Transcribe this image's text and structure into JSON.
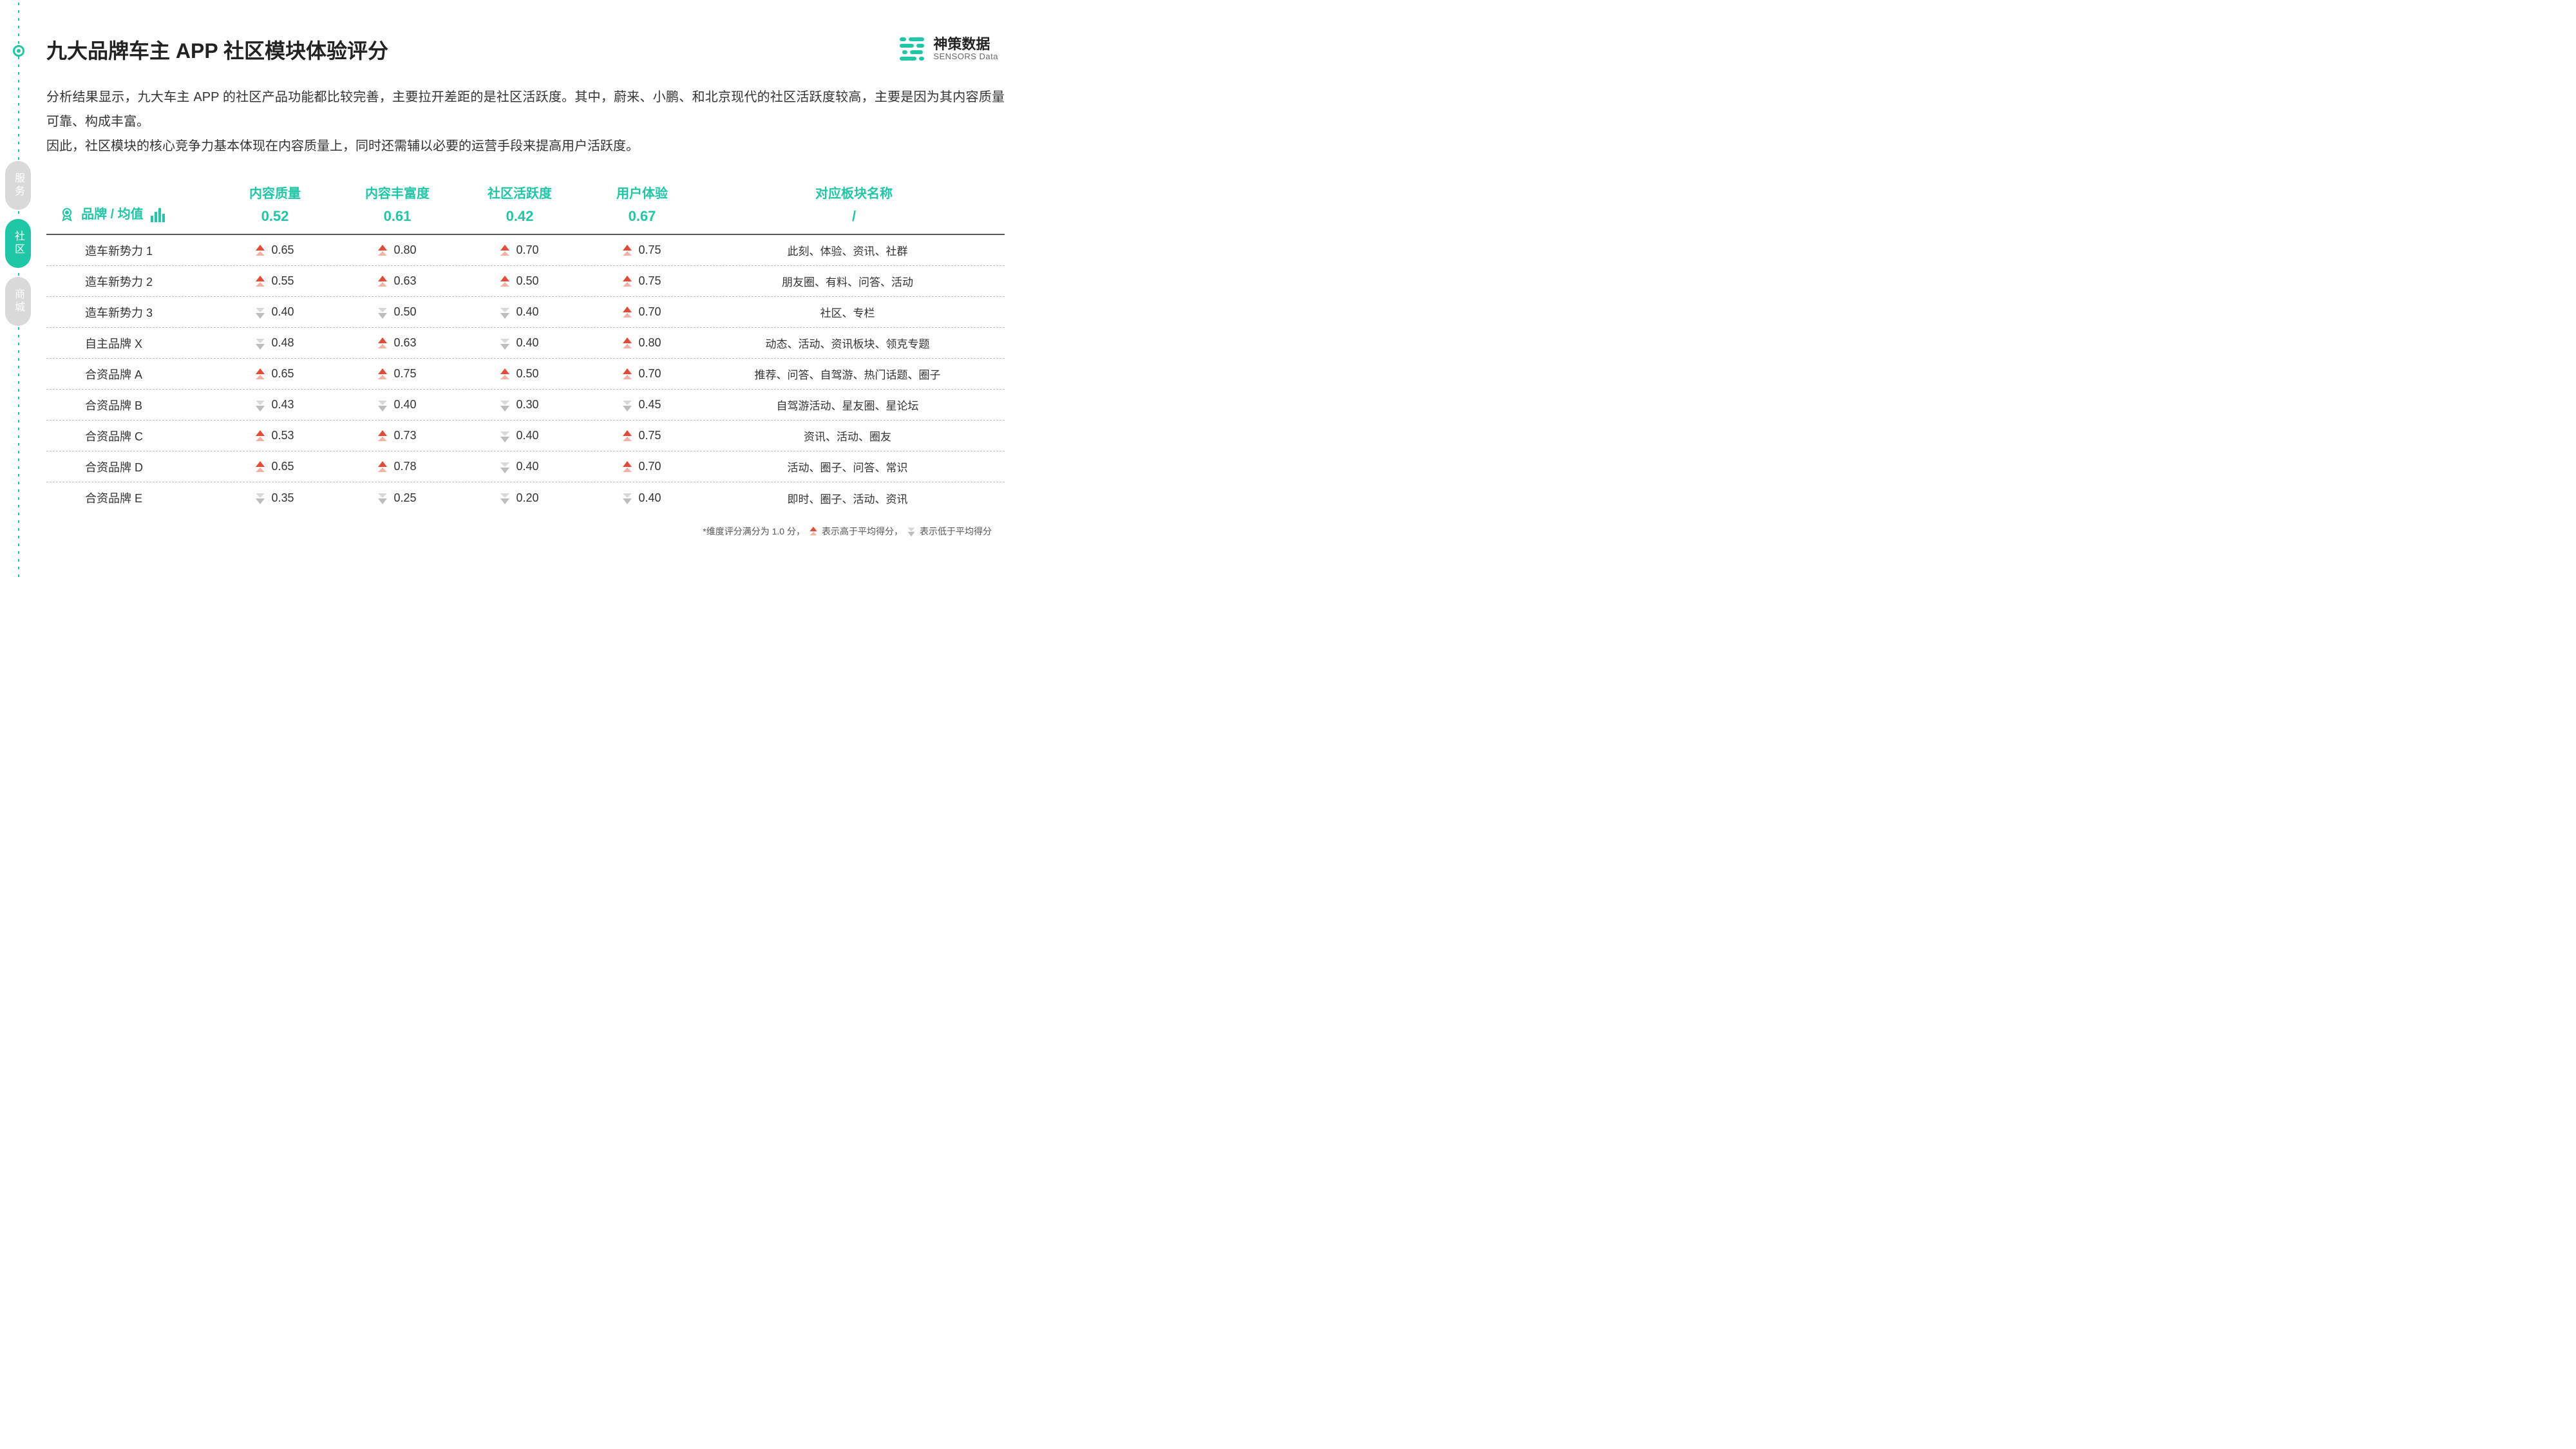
{
  "colors": {
    "accent": "#1fc7a6",
    "up_arrow": "#e84b35",
    "up_arrow_light": "#f5b0a5",
    "down_arrow": "#bdbdbd",
    "down_arrow_light": "#d8d8d8",
    "text": "#333333",
    "inactive_tab": "#d9d9d9",
    "border": "#555555",
    "dash": "#bbbbbb"
  },
  "title": "九大品牌车主 APP 社区模块体验评分",
  "logo": {
    "cn": "神策数据",
    "en": "SENSORS Data"
  },
  "description_line1": "分析结果显示，九大车主 APP 的社区产品功能都比较完善，主要拉开差距的是社区活跃度。其中，蔚来、小鹏、和北京现代的社区活跃度较高，主要是因为其内容质量可靠、构成丰富。",
  "description_line2": "因此，社区模块的核心竞争力基本体现在内容质量上，同时还需辅以必要的运营手段来提高用户活跃度。",
  "side_tabs": [
    {
      "label": "服务",
      "active": false
    },
    {
      "label": "社区",
      "active": true
    },
    {
      "label": "商城",
      "active": false
    }
  ],
  "table": {
    "brand_header": "品牌 / 均值",
    "columns": [
      {
        "label": "内容质量",
        "avg": "0.52"
      },
      {
        "label": "内容丰富度",
        "avg": "0.61"
      },
      {
        "label": "社区活跃度",
        "avg": "0.42"
      },
      {
        "label": "用户体验",
        "avg": "0.67"
      },
      {
        "label": "对应板块名称",
        "avg": "/"
      }
    ],
    "rows": [
      {
        "brand": "造车新势力 1",
        "vals": [
          {
            "v": "0.65",
            "d": "up"
          },
          {
            "v": "0.80",
            "d": "up"
          },
          {
            "v": "0.70",
            "d": "up"
          },
          {
            "v": "0.75",
            "d": "up"
          }
        ],
        "section": "此刻、体验、资讯、社群"
      },
      {
        "brand": "造车新势力 2",
        "vals": [
          {
            "v": "0.55",
            "d": "up"
          },
          {
            "v": "0.63",
            "d": "up"
          },
          {
            "v": "0.50",
            "d": "up"
          },
          {
            "v": "0.75",
            "d": "up"
          }
        ],
        "section": "朋友圈、有料、问答、活动"
      },
      {
        "brand": "造车新势力 3",
        "vals": [
          {
            "v": "0.40",
            "d": "down"
          },
          {
            "v": "0.50",
            "d": "down"
          },
          {
            "v": "0.40",
            "d": "down"
          },
          {
            "v": "0.70",
            "d": "up"
          }
        ],
        "section": "社区、专栏"
      },
      {
        "brand": "自主品牌 X",
        "vals": [
          {
            "v": "0.48",
            "d": "down"
          },
          {
            "v": "0.63",
            "d": "up"
          },
          {
            "v": "0.40",
            "d": "down"
          },
          {
            "v": "0.80",
            "d": "up"
          }
        ],
        "section": "动态、活动、资讯板块、领克专题"
      },
      {
        "brand": "合资品牌 A",
        "vals": [
          {
            "v": "0.65",
            "d": "up"
          },
          {
            "v": "0.75",
            "d": "up"
          },
          {
            "v": "0.50",
            "d": "up"
          },
          {
            "v": "0.70",
            "d": "up"
          }
        ],
        "section": "推荐、问答、自驾游、热门话题、圈子"
      },
      {
        "brand": "合资品牌 B",
        "vals": [
          {
            "v": "0.43",
            "d": "down"
          },
          {
            "v": "0.40",
            "d": "down"
          },
          {
            "v": "0.30",
            "d": "down"
          },
          {
            "v": "0.45",
            "d": "down"
          }
        ],
        "section": "自驾游活动、星友圈、星论坛"
      },
      {
        "brand": "合资品牌 C",
        "vals": [
          {
            "v": "0.53",
            "d": "up"
          },
          {
            "v": "0.73",
            "d": "up"
          },
          {
            "v": "0.40",
            "d": "down"
          },
          {
            "v": "0.75",
            "d": "up"
          }
        ],
        "section": "资讯、活动、圈友"
      },
      {
        "brand": "合资品牌 D",
        "vals": [
          {
            "v": "0.65",
            "d": "up"
          },
          {
            "v": "0.78",
            "d": "up"
          },
          {
            "v": "0.40",
            "d": "down"
          },
          {
            "v": "0.70",
            "d": "up"
          }
        ],
        "section": "活动、圈子、问答、常识"
      },
      {
        "brand": "合资品牌 E",
        "vals": [
          {
            "v": "0.35",
            "d": "down"
          },
          {
            "v": "0.25",
            "d": "down"
          },
          {
            "v": "0.20",
            "d": "down"
          },
          {
            "v": "0.40",
            "d": "down"
          }
        ],
        "section": "即时、圈子、活动、资讯"
      }
    ]
  },
  "footnote": {
    "prefix": "*维度评分满分为 1.0 分，",
    "up_text": "表示高于平均得分，",
    "down_text": "表示低于平均得分"
  }
}
